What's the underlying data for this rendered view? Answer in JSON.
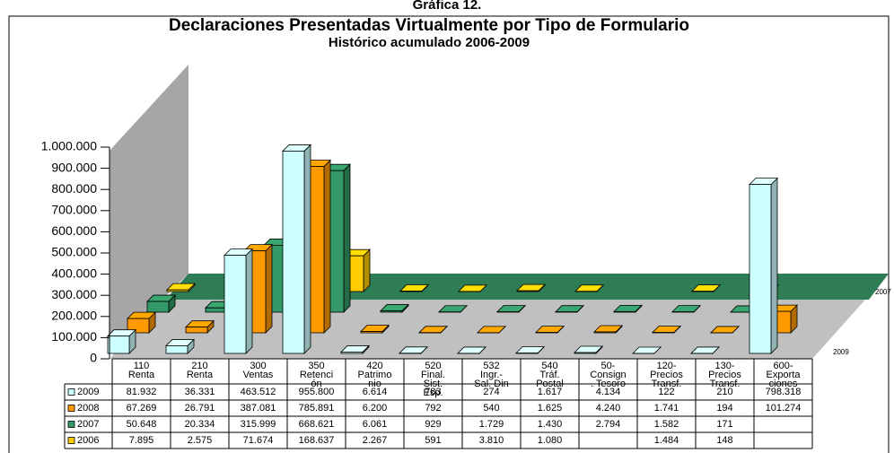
{
  "caption": "Gráfica 12.",
  "chart_data": {
    "type": "bar3d",
    "title": "Declaraciones Presentadas Virtualmente por Tipo de Formulario",
    "subtitle": "Histórico acumulado 2006-2009",
    "categories": [
      [
        "110",
        "Renta"
      ],
      [
        "210",
        "Renta"
      ],
      [
        "300",
        "Ventas"
      ],
      [
        "350",
        "Retenci",
        "ón"
      ],
      [
        "420",
        "Patrimo",
        "nio"
      ],
      [
        "520",
        "Final.",
        "Sist.",
        "Esp."
      ],
      [
        "532",
        "Ingr.-",
        "Sal. Din"
      ],
      [
        "540",
        "Tráf.",
        "Postal"
      ],
      [
        "50-",
        "Consign",
        ". Tesoro"
      ],
      [
        "120-",
        "Precios",
        "Transf."
      ],
      [
        "130-",
        "Precios",
        "Transf."
      ],
      [
        "600-",
        "Exporta",
        "ciones"
      ]
    ],
    "ylim": [
      0,
      1000000
    ],
    "yticks": [
      {
        "value": 0,
        "label": "0"
      },
      {
        "value": 100000,
        "label": "100.000"
      },
      {
        "value": 200000,
        "label": "200.000"
      },
      {
        "value": 300000,
        "label": "300.000"
      },
      {
        "value": 400000,
        "label": "400.000"
      },
      {
        "value": 500000,
        "label": "500.000"
      },
      {
        "value": 600000,
        "label": "600.000"
      },
      {
        "value": 700000,
        "label": "700.000"
      },
      {
        "value": 800000,
        "label": "800.000"
      },
      {
        "value": 900000,
        "label": "900.000"
      },
      {
        "value": 1000000,
        "label": "1.000.000"
      }
    ],
    "series": [
      {
        "name": "2009",
        "color": "#ccffff",
        "values": [
          81932,
          36331,
          463512,
          955800,
          6614,
          783,
          274,
          1617,
          4134,
          122,
          210,
          798318
        ],
        "value_labels": [
          "81.932",
          "36.331",
          "463.512",
          "955.800",
          "6.614",
          "783",
          "274",
          "1.617",
          "4.134",
          "122",
          "210",
          "798.318"
        ]
      },
      {
        "name": "2008",
        "color": "#ff9900",
        "values": [
          67269,
          26791,
          387081,
          785891,
          6200,
          792,
          540,
          1625,
          4240,
          1741,
          194,
          101274
        ],
        "value_labels": [
          "67.269",
          "26.791",
          "387.081",
          "785.891",
          "6.200",
          "792",
          "540",
          "1.625",
          "4.240",
          "1.741",
          "194",
          "101.274"
        ]
      },
      {
        "name": "2007",
        "color": "#339966",
        "values": [
          50648,
          20334,
          315999,
          668621,
          6061,
          929,
          1729,
          1430,
          2794,
          1582,
          171,
          null
        ],
        "value_labels": [
          "50.648",
          "20.334",
          "315.999",
          "668.621",
          "6.061",
          "929",
          "1.729",
          "1.430",
          "2.794",
          "1.582",
          "171",
          null
        ]
      },
      {
        "name": "2006",
        "color": "#ffcc00",
        "values": [
          7895,
          2575,
          71674,
          168637,
          2267,
          591,
          3810,
          1080,
          null,
          1484,
          148,
          null
        ],
        "value_labels": [
          "7.895",
          "2.575",
          "71.674",
          "168.637",
          "2.267",
          "591",
          "3.810",
          "1.080",
          null,
          "1.484",
          "148",
          null
        ]
      }
    ]
  }
}
